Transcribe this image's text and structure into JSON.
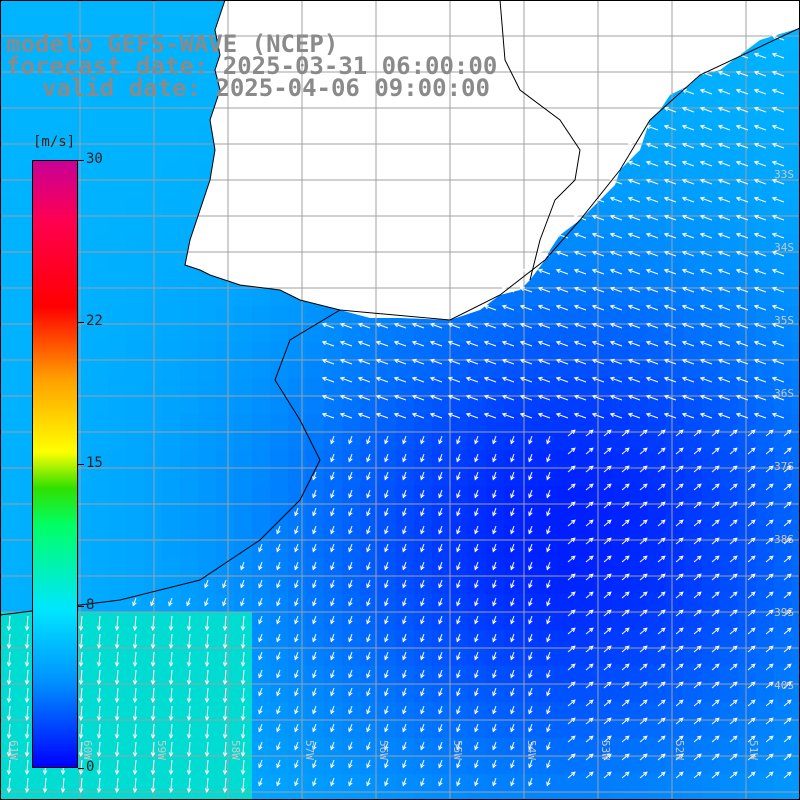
{
  "title": {
    "line1": "modelo GEFS-WAVE (NCEP)",
    "line2": "forecast date: 2025-03-31 06:00:00",
    "line3": "valid date: 2025-04-06 09:00:00"
  },
  "legend": {
    "unit": "[m/s]",
    "ticks": [
      {
        "label": "30",
        "value": 30
      },
      {
        "label": "22",
        "value": 22
      },
      {
        "label": "15",
        "value": 15
      },
      {
        "label": "8",
        "value": 8
      },
      {
        "label": "0",
        "value": 0
      }
    ],
    "colors": [
      "#0000ff",
      "#00c8ff",
      "#00ffe6",
      "#00ff00",
      "#ffff00",
      "#ff8000",
      "#ff0000",
      "#c8008c"
    ]
  },
  "map": {
    "land_color": "#ffffff",
    "grid_color": "#a0a0a0",
    "arrow_color": "#ffffff",
    "lat_labels": [
      "33S",
      "34S",
      "35S",
      "36S",
      "37S",
      "38S",
      "39S",
      "40S"
    ],
    "lon_labels": [
      "61W",
      "60W",
      "59W",
      "58W",
      "57W",
      "56W",
      "55W",
      "54W",
      "53W",
      "52W",
      "51W"
    ]
  }
}
